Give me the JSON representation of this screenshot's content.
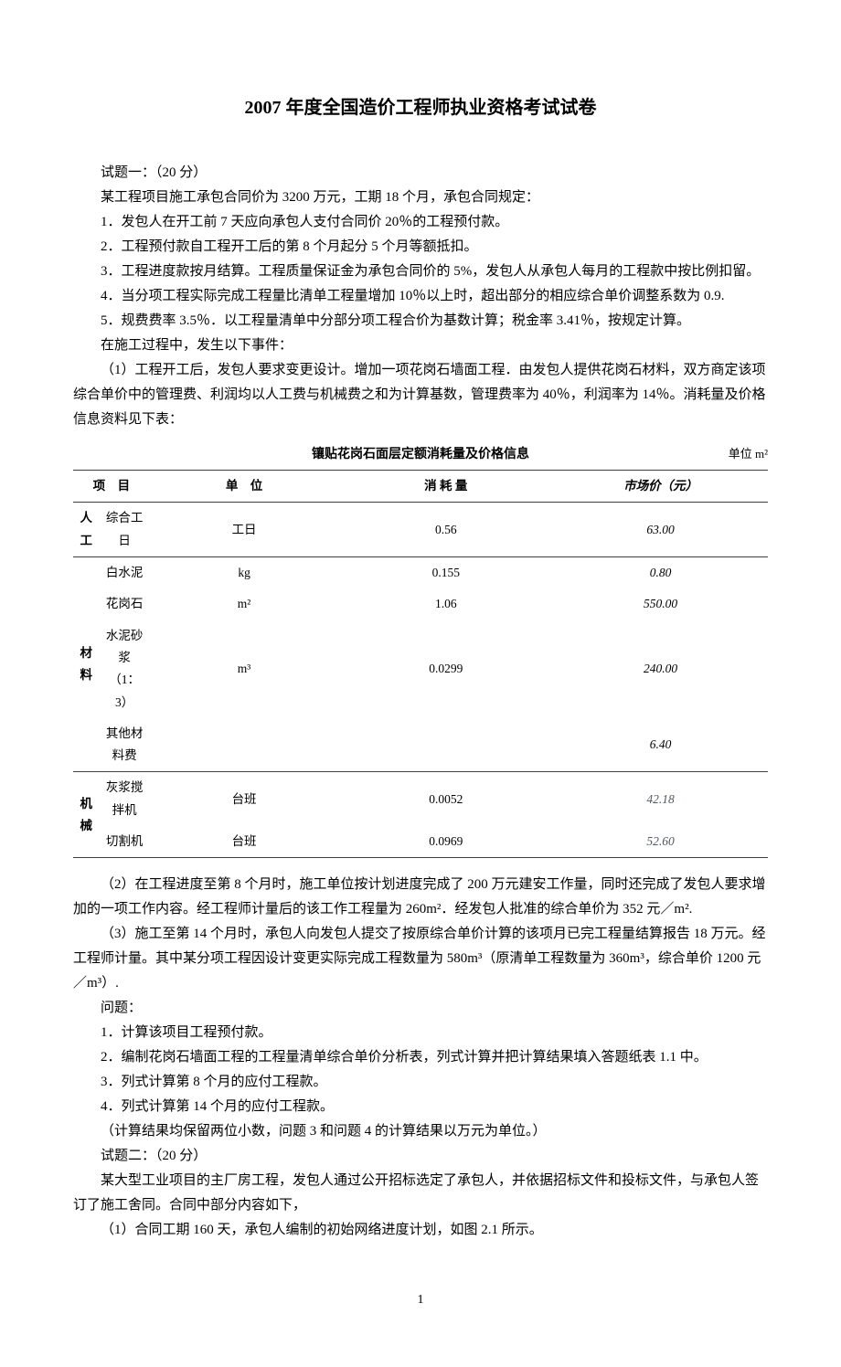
{
  "title": "2007 年度全国造价工程师执业资格考试试卷",
  "intro": {
    "line1": "试题一：（20 分）",
    "line2": "某工程项目施工承包合同价为 3200 万元，工期 18 个月，承包合同规定：",
    "item1": "1．发包人在开工前 7 天应向承包人支付合同价 20％的工程预付款。",
    "item2": "2．工程预付款自工程开工后的第 8 个月起分 5 个月等额抵扣。",
    "item3": "3．工程进度款按月结算。工程质量保证金为承包合同价的 5%，发包人从承包人每月的工程款中按比例扣留。",
    "item4": "4．当分项工程实际完成工程量比清单工程量增加 10％以上时，超出部分的相应综合单价调整系数为 0.9.",
    "item5": "5．规费费率 3.5％．以工程量清单中分部分项工程合价为基数计算；税金率 3.41％，按规定计算。",
    "events_lead": "在施工过程中，发生以下事件：",
    "event1": "（1）工程开工后，发包人要求变更设计。增加一项花岗石墙面工程．由发包人提供花岗石材料，双方商定该项综合单价中的管理费、利润均以人工费与机械费之和为计算基数，管理费率为 40％，利润率为 14％。消耗量及价格信息资料见下表："
  },
  "table": {
    "title": "镶贴花岗石面层定额消耗量及价格信息",
    "unit_note": "单位 m²",
    "headers": {
      "c1": "项　目",
      "c2": "单　位",
      "c3": "消 耗 量",
      "c4": "市场价（元）"
    },
    "rows": {
      "r1": {
        "cat": "人工",
        "item": "综合工日",
        "unit": "工日",
        "cons": "0.56",
        "price": "63.00"
      },
      "r2": {
        "cat": "材料",
        "item": "白水泥",
        "unit": "kg",
        "cons": "0.155",
        "price": "0.80"
      },
      "r3": {
        "item": "花岗石",
        "unit": "m²",
        "cons": "1.06",
        "price": "550.00"
      },
      "r4": {
        "item": "水泥砂浆（1：3）",
        "unit": "m³",
        "cons": "0.0299",
        "price": "240.00"
      },
      "r5": {
        "item": "其他材料费",
        "unit": "",
        "cons": "",
        "price": "6.40"
      },
      "r6": {
        "cat": "机械",
        "item": "灰浆搅拌机",
        "unit": "台班",
        "cons": "0.0052",
        "price": "42.18"
      },
      "r7": {
        "item": "切割机",
        "unit": "台班",
        "cons": "0.0969",
        "price": "52.60"
      }
    }
  },
  "after": {
    "event2": "（2）在工程进度至第 8 个月时，施工单位按计划进度完成了 200 万元建安工作量，同时还完成了发包人要求增加的一项工作内容。经工程师计量后的该工作工程量为 260m²．经发包人批准的综合单价为 352 元／m².",
    "event3": "（3）施工至第 14 个月时，承包人向发包人提交了按原综合单价计算的该项月已完工程量结算报告 18 万元。经工程师计量。其中某分项工程因设计变更实际完成工程数量为 580m³（原清单工程数量为 360m³，综合单价 1200 元／m³）.",
    "q_lead": "问题：",
    "q1": "1．计算该项目工程预付款。",
    "q2": "2．编制花岗石墙面工程的工程量清单综合单价分析表，列式计算并把计算结果填入答题纸表 1.1 中。",
    "q3": "3．列式计算第 8 个月的应付工程款。",
    "q4": "4．列式计算第 14 个月的应付工程款。",
    "note": "（计算结果均保留两位小数，问题 3 和问题 4 的计算结果以万元为单位。）",
    "t2_line1": "试题二：（20 分）",
    "t2_line2": "某大型工业项目的主厂房工程，发包人通过公开招标选定了承包人，并依据招标文件和投标文件，与承包人签订了施工舍同。合同中部分内容如下，",
    "t2_item1": "（1）合同工期 160 天，承包人编制的初始网络进度计划，如图 2.1 所示。"
  },
  "page_num": "1"
}
